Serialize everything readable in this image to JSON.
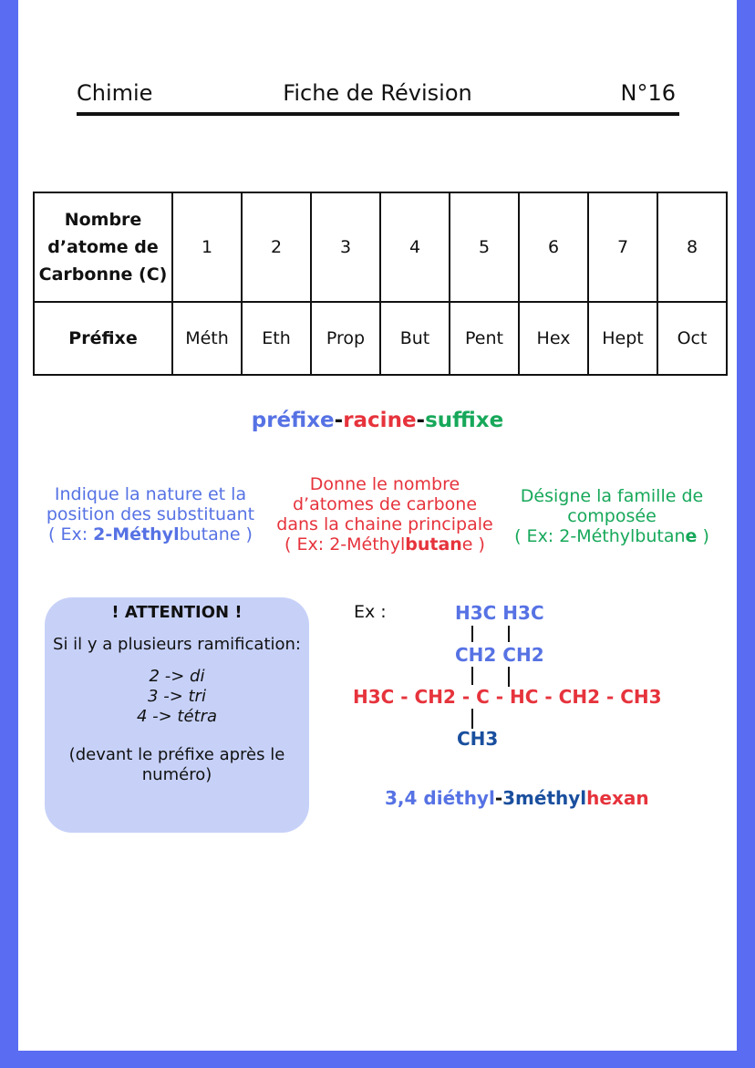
{
  "header": {
    "subject": "Chimie",
    "title": "Fiche de Révision",
    "number": "N°16"
  },
  "table": {
    "row_headers": [
      "Nombre d’atome de Carbonne (C)",
      "Préfixe"
    ],
    "carbons": [
      "1",
      "2",
      "3",
      "4",
      "5",
      "6",
      "7",
      "8"
    ],
    "prefixes": [
      "Méth",
      "Eth",
      "Prop",
      "But",
      "Pent",
      "Hex",
      "Hept",
      "Oct"
    ]
  },
  "formula": {
    "prefix": "préfixe",
    "sep": "-",
    "root": "racine",
    "suffix": "suffixe"
  },
  "explanations": {
    "prefix": {
      "line1": "Indique la nature et la",
      "line2": "position des substituant",
      "ex_open": "( Ex: ",
      "ex_bold": "2-Méthyl",
      "ex_rest": "butane )"
    },
    "root": {
      "line1": "Donne le nombre",
      "line2": "d’atomes de carbone",
      "line3": "dans la chaine principale",
      "ex_open": "( Ex: 2-Méthyl",
      "ex_bold": "butan",
      "ex_rest": "e )"
    },
    "suffix": {
      "line1": "Désigne la famille de",
      "line2": "composée",
      "ex_open": "( Ex: 2-Méthylbutan",
      "ex_bold": "e",
      "ex_rest": " )"
    }
  },
  "attention": {
    "title": "! ATTENTION !",
    "intro": "Si il y a plusieurs ramification:",
    "rules": [
      "2 -> di",
      "3 -> tri",
      "4 -> tétra"
    ],
    "note": "(devant le préfixe après le numéro)"
  },
  "example": {
    "label": "Ex :",
    "top": "H3C H3C",
    "mid": "CH2 CH2",
    "main": "H3C - CH2 - C - HC - CH2 - CH3",
    "bottom": "CH3",
    "name_part1": "3,4 diéthyl",
    "name_sep": "-",
    "name_part2": "3méthyl",
    "name_part3": "hexan"
  },
  "colors": {
    "frame": "#5a6cf2",
    "prefix": "#5672e4",
    "root": "#e6333c",
    "suffix": "#17a85a",
    "methyl": "#1a4f9e",
    "callout": "#c7d1f8"
  }
}
